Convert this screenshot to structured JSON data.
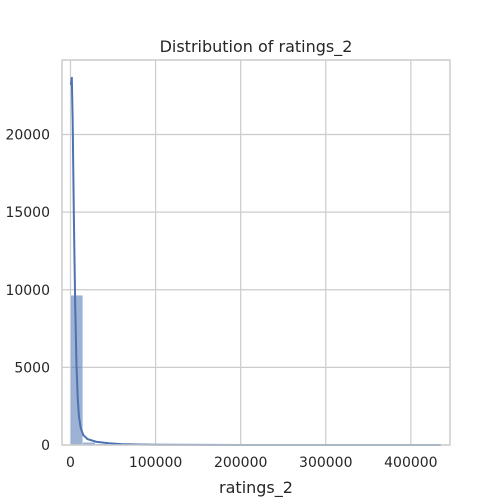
{
  "chart_data": {
    "type": "bar",
    "title": "Distribution of ratings_2",
    "xlabel": "ratings_2",
    "ylabel": "",
    "xlim": [
      -10000,
      446000
    ],
    "ylim": [
      0,
      24800
    ],
    "grid": true,
    "bins": [
      {
        "x0": 0,
        "x1": 14500,
        "count": 9650
      },
      {
        "x0": 14500,
        "x1": 29000,
        "count": 170
      },
      {
        "x0": 29000,
        "x1": 43500,
        "count": 75
      },
      {
        "x0": 43500,
        "x1": 58000,
        "count": 40
      },
      {
        "x0": 58000,
        "x1": 72500,
        "count": 28
      },
      {
        "x0": 72500,
        "x1": 87000,
        "count": 18
      },
      {
        "x0": 87000,
        "x1": 101500,
        "count": 12
      },
      {
        "x0": 101500,
        "x1": 116000,
        "count": 10
      },
      {
        "x0": 116000,
        "x1": 130500,
        "count": 7
      },
      {
        "x0": 130500,
        "x1": 145000,
        "count": 5
      },
      {
        "x0": 145000,
        "x1": 159500,
        "count": 4
      },
      {
        "x0": 159500,
        "x1": 174000,
        "count": 3
      },
      {
        "x0": 174000,
        "x1": 188500,
        "count": 2
      },
      {
        "x0": 188500,
        "x1": 203000,
        "count": 2
      },
      {
        "x0": 203000,
        "x1": 217500,
        "count": 1
      },
      {
        "x0": 217500,
        "x1": 232000,
        "count": 1
      },
      {
        "x0": 232000,
        "x1": 246500,
        "count": 1
      },
      {
        "x0": 246500,
        "x1": 261000,
        "count": 1
      },
      {
        "x0": 261000,
        "x1": 275500,
        "count": 0
      },
      {
        "x0": 275500,
        "x1": 290000,
        "count": 1
      },
      {
        "x0": 290000,
        "x1": 304500,
        "count": 0
      },
      {
        "x0": 304500,
        "x1": 319000,
        "count": 0
      },
      {
        "x0": 319000,
        "x1": 333500,
        "count": 1
      },
      {
        "x0": 333500,
        "x1": 348000,
        "count": 0
      },
      {
        "x0": 348000,
        "x1": 362500,
        "count": 0
      },
      {
        "x0": 362500,
        "x1": 377000,
        "count": 0
      },
      {
        "x0": 377000,
        "x1": 391500,
        "count": 0
      },
      {
        "x0": 391500,
        "x1": 406000,
        "count": 0
      },
      {
        "x0": 406000,
        "x1": 420500,
        "count": 0
      },
      {
        "x0": 420500,
        "x1": 435000,
        "count": 1
      }
    ],
    "kde": {
      "x": [
        500,
        1500,
        2500,
        4000,
        5500,
        7000,
        8500,
        10000,
        12000,
        15000,
        20000,
        30000,
        45000,
        60000,
        80000,
        100000,
        150000,
        200000,
        300000,
        435000
      ],
      "y": [
        23200,
        23700,
        21000,
        14500,
        9000,
        5200,
        3000,
        1800,
        1100,
        650,
        380,
        210,
        110,
        60,
        35,
        20,
        8,
        4,
        2,
        1
      ]
    },
    "x_ticks": [
      {
        "value": 0,
        "label": "0"
      },
      {
        "value": 100000,
        "label": "100000"
      },
      {
        "value": 200000,
        "label": "200000"
      },
      {
        "value": 300000,
        "label": "300000"
      },
      {
        "value": 400000,
        "label": "400000"
      }
    ],
    "y_ticks": [
      {
        "value": 0,
        "label": "0"
      },
      {
        "value": 5000,
        "label": "5000"
      },
      {
        "value": 10000,
        "label": "10000"
      },
      {
        "value": 15000,
        "label": "15000"
      },
      {
        "value": 20000,
        "label": "20000"
      }
    ],
    "colors": {
      "bar_fill": "#4c72b0",
      "bar_opacity": 0.55,
      "kde_line": "#4c72b0",
      "grid": "#cccccc",
      "text": "#262626"
    }
  }
}
